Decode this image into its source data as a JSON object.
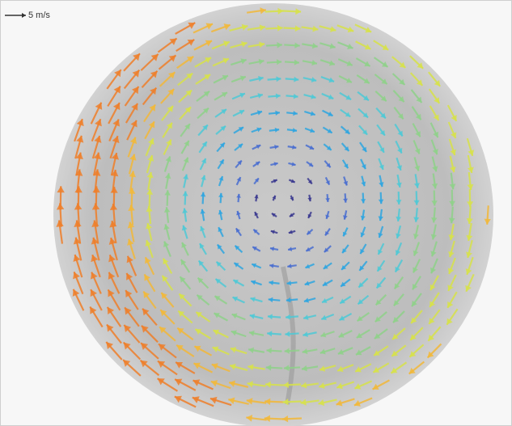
{
  "scale_label": "5 m/s"
}
